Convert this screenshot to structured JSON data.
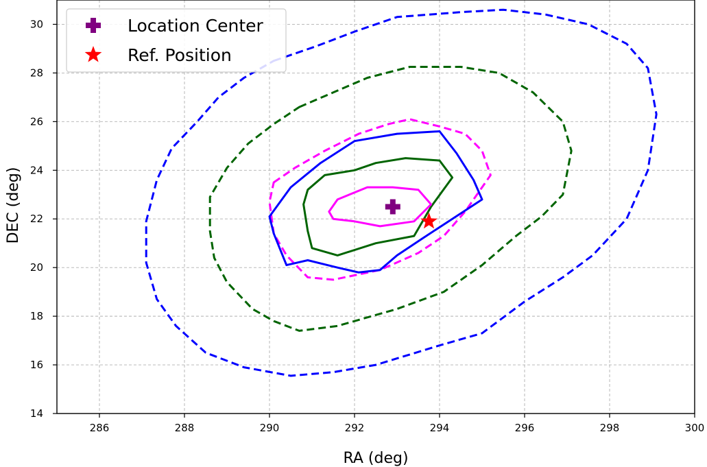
{
  "chart_data": {
    "type": "contour",
    "xlabel": "RA (deg)",
    "ylabel": "DEC (deg)",
    "xlim": [
      285,
      300
    ],
    "ylim": [
      14,
      31
    ],
    "xticks": [
      286,
      288,
      290,
      292,
      294,
      296,
      298,
      300
    ],
    "yticks": [
      14,
      16,
      18,
      20,
      22,
      24,
      26,
      28,
      30
    ],
    "grid": true,
    "legend_position": "top-left",
    "legend": [
      {
        "label": "Location Center",
        "marker": "plus",
        "color": "#800080"
      },
      {
        "label": "Ref. Position",
        "marker": "star",
        "color": "#ff0000"
      }
    ],
    "points": [
      {
        "label": "Location Center",
        "x": 292.9,
        "y": 22.5,
        "marker": "plus",
        "color": "#800080"
      },
      {
        "label": "Ref. Position",
        "x": 293.75,
        "y": 21.9,
        "marker": "star",
        "color": "#ff0000"
      }
    ],
    "contours": [
      {
        "color": "#0000ff",
        "style": "dashed",
        "points": [
          [
            290.1,
            28.5
          ],
          [
            291.1,
            29.1
          ],
          [
            292,
            29.7
          ],
          [
            293,
            30.3
          ],
          [
            294.5,
            30.5
          ],
          [
            295.5,
            30.6
          ],
          [
            296.5,
            30.4
          ],
          [
            297.5,
            30
          ],
          [
            298.4,
            29.2
          ],
          [
            298.9,
            28.2
          ],
          [
            299.1,
            26.3
          ],
          [
            298.9,
            24
          ],
          [
            298.4,
            22
          ],
          [
            297.6,
            20.5
          ],
          [
            296.9,
            19.6
          ],
          [
            296,
            18.6
          ],
          [
            295,
            17.3
          ],
          [
            294,
            16.8
          ],
          [
            292.5,
            16
          ],
          [
            291.5,
            15.7
          ],
          [
            290.5,
            15.55
          ],
          [
            289.4,
            15.9
          ],
          [
            288.5,
            16.5
          ],
          [
            287.8,
            17.6
          ],
          [
            287.35,
            18.7
          ],
          [
            287.1,
            20.2
          ],
          [
            287.1,
            21.9
          ],
          [
            287.35,
            23.6
          ],
          [
            287.7,
            24.9
          ],
          [
            288.3,
            26
          ],
          [
            288.8,
            27
          ],
          [
            289.4,
            27.8
          ],
          [
            290.1,
            28.5
          ]
        ]
      },
      {
        "color": "#006400",
        "style": "dashed",
        "points": [
          [
            290.7,
            26.6
          ],
          [
            291.5,
            27.2
          ],
          [
            292.3,
            27.8
          ],
          [
            293.3,
            28.25
          ],
          [
            294.5,
            28.25
          ],
          [
            295.4,
            28
          ],
          [
            296.2,
            27.2
          ],
          [
            296.9,
            26
          ],
          [
            297.1,
            24.8
          ],
          [
            296.9,
            23
          ],
          [
            296.4,
            22.1
          ],
          [
            295.8,
            21.3
          ],
          [
            295,
            20.1
          ],
          [
            294.1,
            19
          ],
          [
            293,
            18.3
          ],
          [
            291.6,
            17.6
          ],
          [
            290.7,
            17.4
          ],
          [
            290.1,
            17.8
          ],
          [
            289.6,
            18.3
          ],
          [
            289,
            19.4
          ],
          [
            288.7,
            20.4
          ],
          [
            288.6,
            21.5
          ],
          [
            288.6,
            22.9
          ],
          [
            289,
            24.1
          ],
          [
            289.5,
            25.1
          ],
          [
            290.1,
            25.9
          ],
          [
            290.7,
            26.6
          ]
        ]
      },
      {
        "color": "#ff00ff",
        "style": "dashed",
        "points": [
          [
            290.1,
            23.5
          ],
          [
            290.6,
            24.1
          ],
          [
            291.3,
            24.8
          ],
          [
            292.1,
            25.5
          ],
          [
            292.8,
            25.9
          ],
          [
            293.3,
            26.1
          ],
          [
            294,
            25.8
          ],
          [
            294.6,
            25.5
          ],
          [
            295,
            24.8
          ],
          [
            295.2,
            23.8
          ],
          [
            294.6,
            22.3
          ],
          [
            294.1,
            21.3
          ],
          [
            293.5,
            20.6
          ],
          [
            292.6,
            19.9
          ],
          [
            291.5,
            19.5
          ],
          [
            290.9,
            19.6
          ],
          [
            290.4,
            20.5
          ],
          [
            290.1,
            21.4
          ],
          [
            290,
            22.7
          ],
          [
            290.1,
            23.5
          ]
        ]
      },
      {
        "color": "#0000ff",
        "style": "solid",
        "points": [
          [
            290.5,
            23.3
          ],
          [
            291.2,
            24.3
          ],
          [
            292,
            25.2
          ],
          [
            293,
            25.5
          ],
          [
            294,
            25.6
          ],
          [
            294.4,
            24.7
          ],
          [
            294.8,
            23.6
          ],
          [
            295,
            22.8
          ],
          [
            294.3,
            22
          ],
          [
            293.6,
            21.2
          ],
          [
            293,
            20.5
          ],
          [
            292.6,
            19.9
          ],
          [
            292.1,
            19.8
          ],
          [
            291.6,
            20
          ],
          [
            290.9,
            20.3
          ],
          [
            290.4,
            20.1
          ],
          [
            290.1,
            21.4
          ],
          [
            290,
            22.1
          ],
          [
            290.5,
            23.3
          ]
        ]
      },
      {
        "color": "#006400",
        "style": "solid",
        "points": [
          [
            291.3,
            23.8
          ],
          [
            292,
            24
          ],
          [
            292.5,
            24.3
          ],
          [
            293.2,
            24.5
          ],
          [
            294,
            24.4
          ],
          [
            294.3,
            23.7
          ],
          [
            293.8,
            22.5
          ],
          [
            293.4,
            21.3
          ],
          [
            292.5,
            21
          ],
          [
            291.6,
            20.5
          ],
          [
            291,
            20.8
          ],
          [
            290.9,
            21.5
          ],
          [
            290.8,
            22.6
          ],
          [
            290.9,
            23.2
          ],
          [
            291.3,
            23.8
          ]
        ]
      },
      {
        "color": "#ff00ff",
        "style": "solid",
        "points": [
          [
            291.6,
            22.8
          ],
          [
            292.3,
            23.3
          ],
          [
            292.9,
            23.3
          ],
          [
            293.5,
            23.2
          ],
          [
            293.8,
            22.6
          ],
          [
            293.4,
            21.9
          ],
          [
            292.6,
            21.7
          ],
          [
            292,
            21.9
          ],
          [
            291.5,
            22
          ],
          [
            291.4,
            22.3
          ],
          [
            291.6,
            22.8
          ]
        ]
      }
    ]
  }
}
